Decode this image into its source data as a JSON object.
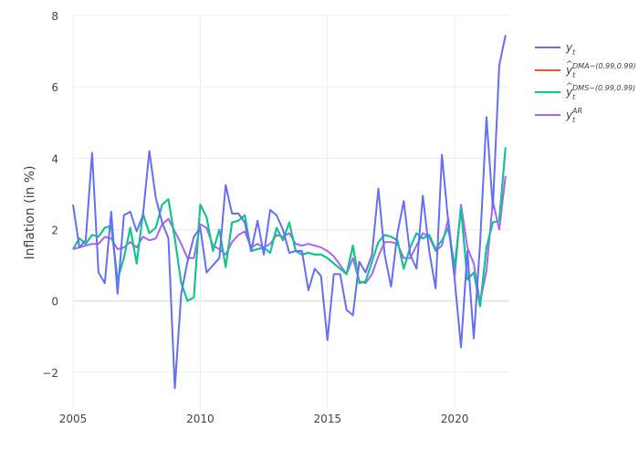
{
  "chart_data": {
    "type": "line",
    "title": "",
    "xlabel": "",
    "ylabel": "Inflation (in %)",
    "xlim": [
      2005,
      2022.5
    ],
    "ylim": [
      -3,
      8
    ],
    "x_ticks": [
      2005,
      2010,
      2015,
      2020
    ],
    "x_tick_labels": [
      "2005",
      "2010",
      "2015",
      "2020"
    ],
    "y_ticks": [
      -2,
      0,
      2,
      4,
      6,
      8
    ],
    "y_tick_labels": [
      "−2",
      "0",
      "2",
      "4",
      "6",
      "8"
    ],
    "grid": true,
    "legend_position": "top-right",
    "x": [
      2005.0,
      2005.25,
      2005.5,
      2005.75,
      2006.0,
      2006.25,
      2006.5,
      2006.75,
      2007.0,
      2007.25,
      2007.5,
      2007.75,
      2008.0,
      2008.25,
      2008.5,
      2008.75,
      2009.0,
      2009.25,
      2009.5,
      2009.75,
      2010.0,
      2010.25,
      2010.5,
      2010.75,
      2011.0,
      2011.25,
      2011.5,
      2011.75,
      2012.0,
      2012.25,
      2012.5,
      2012.75,
      2013.0,
      2013.25,
      2013.5,
      2013.75,
      2014.0,
      2014.25,
      2014.5,
      2014.75,
      2015.0,
      2015.25,
      2015.5,
      2015.75,
      2016.0,
      2016.25,
      2016.5,
      2016.75,
      2017.0,
      2017.25,
      2017.5,
      2017.75,
      2018.0,
      2018.25,
      2018.5,
      2018.75,
      2019.0,
      2019.25,
      2019.5,
      2019.75,
      2020.0,
      2020.25,
      2020.5,
      2020.75,
      2021.0,
      2021.25,
      2021.5,
      2021.75,
      2022.0
    ],
    "series": [
      {
        "name": "y",
        "color": "#636efa",
        "values": [
          2.7,
          1.5,
          1.7,
          4.15,
          0.8,
          0.5,
          2.5,
          0.2,
          2.4,
          2.5,
          1.95,
          2.4,
          4.2,
          2.9,
          2.2,
          1.75,
          -2.45,
          0.2,
          1.1,
          1.8,
          2.05,
          0.8,
          1.0,
          1.2,
          3.25,
          2.45,
          2.45,
          2.2,
          1.4,
          2.25,
          1.3,
          2.55,
          2.4,
          2.0,
          1.35,
          1.4,
          1.4,
          0.3,
          0.9,
          0.7,
          -1.1,
          0.75,
          0.75,
          -0.25,
          -0.4,
          1.1,
          0.8,
          1.3,
          3.15,
          1.3,
          0.4,
          1.9,
          2.8,
          1.3,
          0.9,
          2.95,
          1.4,
          0.35,
          4.1,
          2.2,
          0.6,
          -1.3,
          1.4,
          -1.05,
          1.6,
          5.15,
          2.6,
          6.6,
          7.45
        ]
      },
      {
        "name": "DMA",
        "color": "#ef553b",
        "values": [
          1.45,
          1.75,
          1.6,
          1.85,
          1.8,
          2.05,
          2.1,
          0.6,
          1.2,
          2.05,
          1.05,
          2.45,
          1.9,
          2.05,
          2.7,
          2.85,
          1.75,
          0.5,
          0.0,
          0.1,
          2.7,
          2.35,
          1.4,
          2.0,
          0.95,
          2.2,
          2.25,
          2.4,
          1.4,
          1.45,
          1.5,
          1.35,
          2.05,
          1.7,
          2.2,
          1.4,
          1.3,
          1.35,
          1.3,
          1.3,
          1.2,
          1.05,
          0.9,
          0.75,
          1.55,
          0.5,
          0.55,
          1.1,
          1.65,
          1.85,
          1.8,
          1.7,
          0.9,
          1.5,
          1.9,
          1.75,
          1.85,
          1.45,
          1.7,
          2.05,
          0.95,
          2.6,
          0.6,
          0.8,
          -0.15,
          1.5,
          2.2,
          2.25,
          4.3
        ]
      },
      {
        "name": "DMS",
        "color": "#00cc96",
        "values": [
          1.45,
          1.75,
          1.6,
          1.85,
          1.8,
          2.05,
          2.1,
          0.6,
          1.2,
          2.05,
          1.05,
          2.45,
          1.9,
          2.05,
          2.7,
          2.85,
          1.75,
          0.5,
          0.0,
          0.1,
          2.7,
          2.35,
          1.4,
          2.0,
          0.95,
          2.2,
          2.25,
          2.4,
          1.4,
          1.45,
          1.5,
          1.35,
          2.05,
          1.7,
          2.2,
          1.4,
          1.3,
          1.35,
          1.3,
          1.3,
          1.2,
          1.05,
          0.9,
          0.75,
          1.55,
          0.5,
          0.55,
          1.1,
          1.65,
          1.85,
          1.8,
          1.7,
          0.9,
          1.5,
          1.9,
          1.75,
          1.85,
          1.45,
          1.7,
          2.05,
          0.95,
          2.6,
          0.6,
          0.8,
          -0.15,
          1.5,
          2.2,
          2.25,
          4.3
        ]
      },
      {
        "name": "AR",
        "color": "#ab63fa",
        "values": [
          1.45,
          1.5,
          1.55,
          1.6,
          1.6,
          1.8,
          1.75,
          1.45,
          1.5,
          1.65,
          1.5,
          1.8,
          1.7,
          1.75,
          2.15,
          2.3,
          1.95,
          1.6,
          1.2,
          1.2,
          2.15,
          2.05,
          1.55,
          1.45,
          1.3,
          1.65,
          1.85,
          1.95,
          1.5,
          1.6,
          1.5,
          1.6,
          1.85,
          1.8,
          1.9,
          1.6,
          1.55,
          1.6,
          1.55,
          1.5,
          1.4,
          1.25,
          1.0,
          0.75,
          1.2,
          0.55,
          0.5,
          0.75,
          1.25,
          1.65,
          1.65,
          1.6,
          1.2,
          1.2,
          1.55,
          1.9,
          1.8,
          1.4,
          1.55,
          2.3,
          0.7,
          2.7,
          1.5,
          1.05,
          -0.05,
          0.85,
          2.8,
          2.0,
          3.5
        ]
      }
    ]
  },
  "legend": [
    {
      "base": "y",
      "sub": "t",
      "sup": "",
      "hat": false,
      "color": "#636efa"
    },
    {
      "base": "y",
      "sub": "t",
      "sup": "DMA−(0.99,0.99)",
      "hat": true,
      "color": "#ef553b"
    },
    {
      "base": "y",
      "sub": "t",
      "sup": "DMS−(0.99,0.99)",
      "hat": true,
      "color": "#00cc96"
    },
    {
      "base": "y",
      "sub": "t",
      "sup": "AR",
      "hat": false,
      "color": "#ab63fa"
    }
  ]
}
